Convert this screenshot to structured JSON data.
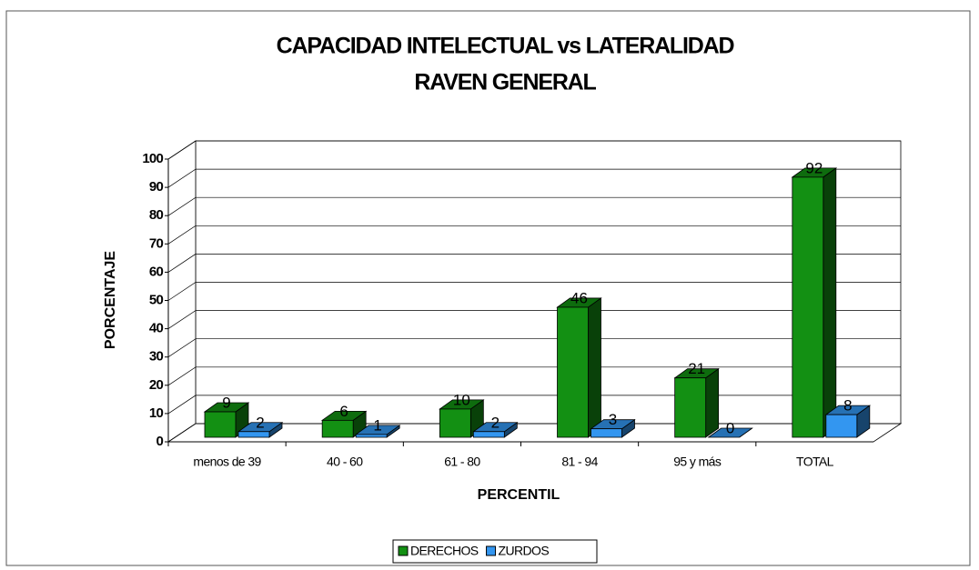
{
  "chart_data": {
    "type": "bar3d",
    "title": "CAPACIDAD INTELECTUAL vs LATERALIDAD",
    "subtitle": "RAVEN GENERAL",
    "xlabel": "PERCENTIL",
    "ylabel": "PORCENTAJE",
    "categories": [
      "menos de 39",
      "40 - 60",
      "61 - 80",
      "81 - 94",
      "95 y más",
      "TOTAL"
    ],
    "series": [
      {
        "name": "DERECHOS",
        "color": "#139013",
        "values": [
          9,
          6,
          10,
          46,
          21,
          92
        ]
      },
      {
        "name": "ZURDOS",
        "color": "#3396f0",
        "values": [
          2,
          1,
          2,
          3,
          0,
          8
        ]
      }
    ],
    "ylim": [
      0,
      100
    ],
    "yticks": [
      0,
      10,
      20,
      30,
      40,
      50,
      60,
      70,
      80,
      90,
      100
    ],
    "grid": true,
    "legend": "bottom"
  }
}
